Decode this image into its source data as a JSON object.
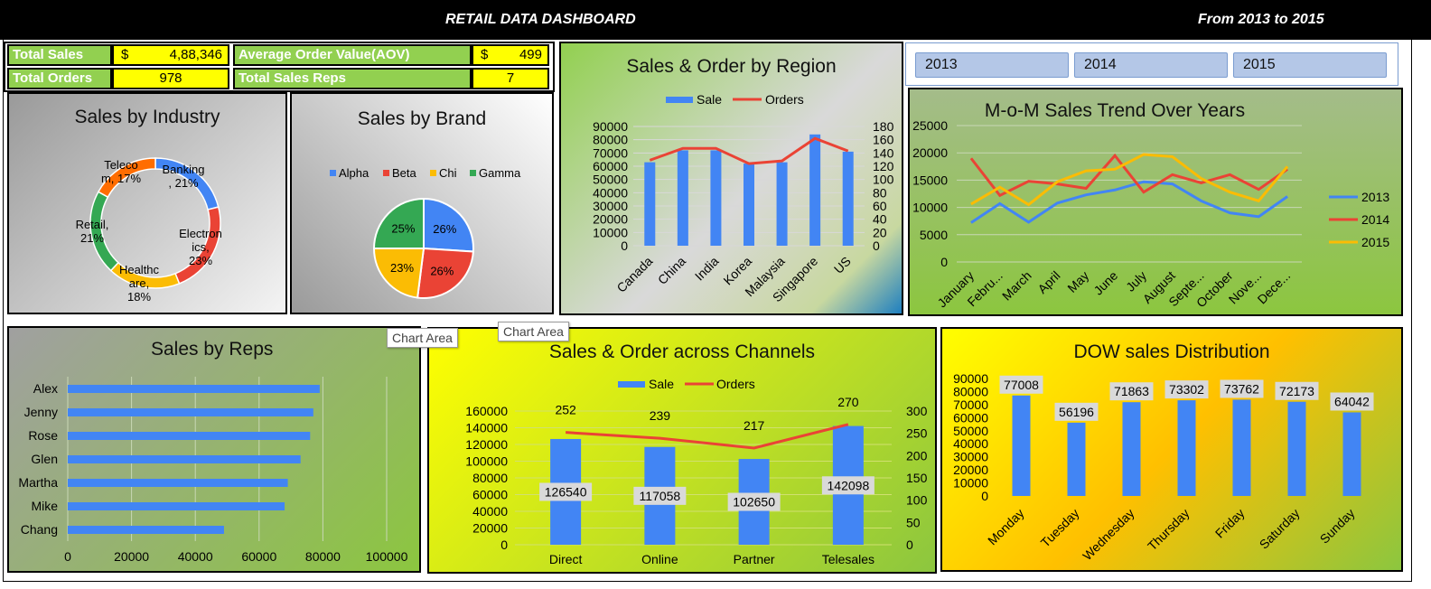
{
  "header": {
    "title": "RETAIL DATA DASHBOARD",
    "range": "From 2013 to 2015"
  },
  "kpis": {
    "total_sales_label": "Total Sales",
    "total_sales_currency": "$",
    "total_sales_value": "4,88,346",
    "aov_label": "Average Order Value(AOV)",
    "aov_currency": "$",
    "aov_value": "499",
    "total_orders_label": "Total Orders",
    "total_orders_value": "978",
    "total_reps_label": "Total Sales Reps",
    "total_reps_value": "7"
  },
  "slicer": {
    "buttons": [
      "2013",
      "2014",
      "2015"
    ]
  },
  "tooltips": {
    "t1": "Chart Area",
    "t2": "Chart Area"
  },
  "colors": {
    "blue": "#4285f4",
    "red": "#ea4335",
    "yellow": "#fbbc04",
    "green": "#34a853",
    "orange": "#ff6d01",
    "kpi_green": "#92d050",
    "kpi_yellow": "#ffff00"
  },
  "chart_data": [
    {
      "id": "industry",
      "type": "pie",
      "title": "Sales by Industry",
      "donut": true,
      "slices": [
        {
          "label": "Banking, 21%",
          "value": 21,
          "color": "#4285f4"
        },
        {
          "label": "Electronics, 23%",
          "value": 23,
          "color": "#ea4335"
        },
        {
          "label": "Healthcare, 18%",
          "value": 18,
          "color": "#fbbc04"
        },
        {
          "label": "Retail, 21%",
          "value": 21,
          "color": "#34a853"
        },
        {
          "label": "Telecom, 17%",
          "value": 17,
          "color": "#ff6d01"
        }
      ]
    },
    {
      "id": "brand",
      "type": "pie",
      "title": "Sales by Brand",
      "legend": [
        "Alpha",
        "Beta",
        "Chi",
        "Gamma"
      ],
      "slices": [
        {
          "label": "26%",
          "name": "Alpha",
          "value": 26,
          "color": "#4285f4"
        },
        {
          "label": "26%",
          "name": "Beta",
          "value": 26,
          "color": "#ea4335"
        },
        {
          "label": "23%",
          "name": "Chi",
          "value": 23,
          "color": "#fbbc04"
        },
        {
          "label": "25%",
          "name": "Gamma",
          "value": 25,
          "color": "#34a853"
        }
      ]
    },
    {
      "id": "region",
      "type": "bar",
      "title": "Sales & Order by Region",
      "categories": [
        "Canada",
        "China",
        "India",
        "Korea",
        "Malaysia",
        "Singapore",
        "US"
      ],
      "series": [
        {
          "name": "Sale",
          "type": "bar",
          "values": [
            63000,
            72000,
            72000,
            62000,
            63000,
            84000,
            71000
          ]
        },
        {
          "name": "Orders",
          "type": "line",
          "axis": "right",
          "values": [
            129,
            147,
            147,
            124,
            128,
            162,
            143
          ]
        }
      ],
      "ylim": [
        0,
        90000
      ],
      "y_ticks": [
        0,
        10000,
        20000,
        30000,
        40000,
        50000,
        60000,
        70000,
        80000,
        90000
      ],
      "y2lim": [
        0,
        180
      ],
      "y2_ticks": [
        0,
        20,
        40,
        60,
        80,
        100,
        120,
        140,
        160,
        180
      ]
    },
    {
      "id": "mom",
      "type": "line",
      "title": "M-o-M Sales Trend Over Years",
      "categories": [
        "January",
        "Febru...",
        "March",
        "April",
        "May",
        "June",
        "July",
        "August",
        "Septe...",
        "October",
        "Nove...",
        "Dece..."
      ],
      "series": [
        {
          "name": "2013",
          "values": [
            7200,
            10700,
            7300,
            10800,
            12300,
            13200,
            14700,
            14300,
            11200,
            9000,
            8300,
            12000
          ]
        },
        {
          "name": "2014",
          "values": [
            19000,
            12200,
            14800,
            14300,
            13500,
            19500,
            12800,
            16000,
            14500,
            16000,
            13300,
            17000
          ]
        },
        {
          "name": "2015",
          "values": [
            10600,
            13700,
            10500,
            14700,
            16700,
            17000,
            19700,
            19300,
            15300,
            12800,
            11200,
            17500
          ]
        }
      ],
      "ylim": [
        0,
        25000
      ],
      "y_ticks": [
        0,
        5000,
        10000,
        15000,
        20000,
        25000
      ]
    },
    {
      "id": "reps",
      "type": "bar",
      "orientation": "horizontal",
      "title": "Sales by Reps",
      "categories": [
        "Alex",
        "Jenny",
        "Rose",
        "Glen",
        "Martha",
        "Mike",
        "Chang"
      ],
      "values": [
        79000,
        77000,
        76000,
        73000,
        69000,
        68000,
        49000
      ],
      "xlim": [
        0,
        100000
      ],
      "x_ticks": [
        0,
        20000,
        40000,
        60000,
        80000,
        100000
      ]
    },
    {
      "id": "channels",
      "type": "bar",
      "title": "Sales & Order across Channels",
      "categories": [
        "Direct",
        "Online",
        "Partner",
        "Telesales"
      ],
      "series": [
        {
          "name": "Sale",
          "type": "bar",
          "values": [
            126540,
            117058,
            102650,
            142098
          ]
        },
        {
          "name": "Orders",
          "type": "line",
          "axis": "right",
          "values": [
            252,
            239,
            217,
            270
          ]
        }
      ],
      "ylim": [
        0,
        160000
      ],
      "y_ticks": [
        0,
        20000,
        40000,
        60000,
        80000,
        100000,
        120000,
        140000,
        160000
      ],
      "y2lim": [
        0,
        300
      ],
      "y2_ticks": [
        0,
        50,
        100,
        150,
        200,
        250,
        300
      ]
    },
    {
      "id": "dow",
      "type": "bar",
      "title": "DOW sales Distribution",
      "categories": [
        "Monday",
        "Tuesday",
        "Wednesday",
        "Thursday",
        "Friday",
        "Saturday",
        "Sunday"
      ],
      "values": [
        77008,
        56196,
        71863,
        73302,
        73762,
        72173,
        64042
      ],
      "ylim": [
        0,
        90000
      ],
      "y_ticks": [
        0,
        10000,
        20000,
        30000,
        40000,
        50000,
        60000,
        70000,
        80000,
        90000
      ]
    }
  ]
}
